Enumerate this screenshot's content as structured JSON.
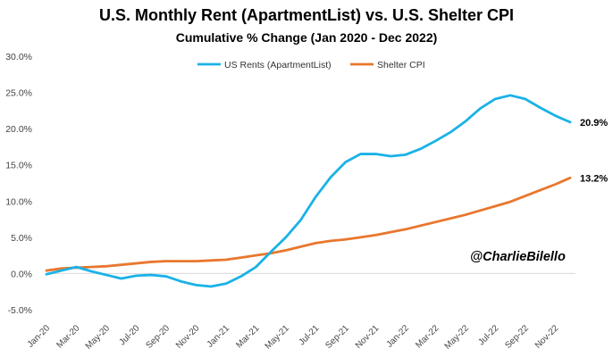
{
  "chart_data": {
    "type": "line",
    "title": "U.S. Monthly Rent (ApartmentList) vs. U.S. Shelter CPI",
    "subtitle": "Cumulative % Change (Jan 2020 - Dec 2022)",
    "xlabel": "",
    "ylabel": "",
    "ylim": [
      -5,
      30
    ],
    "yticks": [
      -5,
      0,
      5,
      10,
      15,
      20,
      25,
      30
    ],
    "ytick_labels": [
      "-5.0%",
      "0.0%",
      "5.0%",
      "10.0%",
      "15.0%",
      "20.0%",
      "25.0%",
      "30.0%"
    ],
    "x": [
      "Jan-20",
      "Feb-20",
      "Mar-20",
      "Apr-20",
      "May-20",
      "Jun-20",
      "Jul-20",
      "Aug-20",
      "Sep-20",
      "Oct-20",
      "Nov-20",
      "Dec-20",
      "Jan-21",
      "Feb-21",
      "Mar-21",
      "Apr-21",
      "May-21",
      "Jun-21",
      "Jul-21",
      "Aug-21",
      "Sep-21",
      "Oct-21",
      "Nov-21",
      "Dec-21",
      "Jan-22",
      "Feb-22",
      "Mar-22",
      "Apr-22",
      "May-22",
      "Jun-22",
      "Jul-22",
      "Aug-22",
      "Sep-22",
      "Oct-22",
      "Nov-22",
      "Dec-22"
    ],
    "xtick_labels": [
      "Jan-20",
      "Mar-20",
      "May-20",
      "Jul-20",
      "Sep-20",
      "Nov-20",
      "Jan-21",
      "Mar-21",
      "May-21",
      "Jul-21",
      "Sep-21",
      "Nov-21",
      "Jan-22",
      "Mar-22",
      "May-22",
      "Jul-22",
      "Sep-22",
      "Nov-22"
    ],
    "legend_position": "top-center",
    "grid": false,
    "series": [
      {
        "name": "US Rents (ApartmentList)",
        "color": "#1AB2E6",
        "values": [
          -0.1,
          0.4,
          0.9,
          0.3,
          -0.2,
          -0.7,
          -0.3,
          -0.2,
          -0.4,
          -1.1,
          -1.6,
          -1.8,
          -1.4,
          -0.4,
          0.9,
          3.0,
          5.0,
          7.4,
          10.6,
          13.3,
          15.4,
          16.5,
          16.5,
          16.2,
          16.4,
          17.2,
          18.3,
          19.5,
          21.0,
          22.8,
          24.1,
          24.6,
          24.1,
          22.9,
          21.8,
          20.9
        ],
        "end_label": "20.9%"
      },
      {
        "name": "Shelter CPI",
        "color": "#E8772E",
        "values": [
          0.4,
          0.7,
          0.8,
          0.9,
          1.0,
          1.2,
          1.4,
          1.6,
          1.7,
          1.7,
          1.7,
          1.8,
          1.9,
          2.2,
          2.5,
          2.8,
          3.2,
          3.7,
          4.2,
          4.5,
          4.7,
          5.0,
          5.3,
          5.7,
          6.1,
          6.6,
          7.1,
          7.6,
          8.1,
          8.7,
          9.3,
          9.9,
          10.7,
          11.5,
          12.3,
          13.2
        ],
        "end_label": "13.2%"
      }
    ],
    "annotation": "@CharlieBilello"
  }
}
